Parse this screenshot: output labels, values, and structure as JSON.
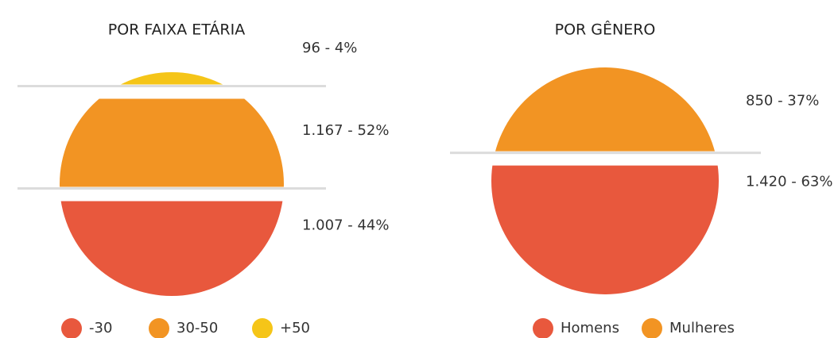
{
  "chart_data": [
    {
      "type": "pie",
      "title": "POR FAIXA ETÁRIA",
      "categories": [
        "-30",
        "30-50",
        "+50"
      ],
      "values": [
        1007,
        1167,
        96
      ],
      "value_labels": [
        "1.007 - 44%",
        "1.167 - 52%",
        "96 - 4%"
      ],
      "colors": [
        "#e8583d",
        "#f29423",
        "#f5c518"
      ]
    },
    {
      "type": "pie",
      "title": "POR GÊNERO",
      "categories": [
        "Homens",
        "Mulheres"
      ],
      "values": [
        1420,
        850
      ],
      "value_labels": [
        "1.420 - 63%",
        "850 - 37%"
      ],
      "colors": [
        "#e8583d",
        "#f29423"
      ]
    }
  ]
}
